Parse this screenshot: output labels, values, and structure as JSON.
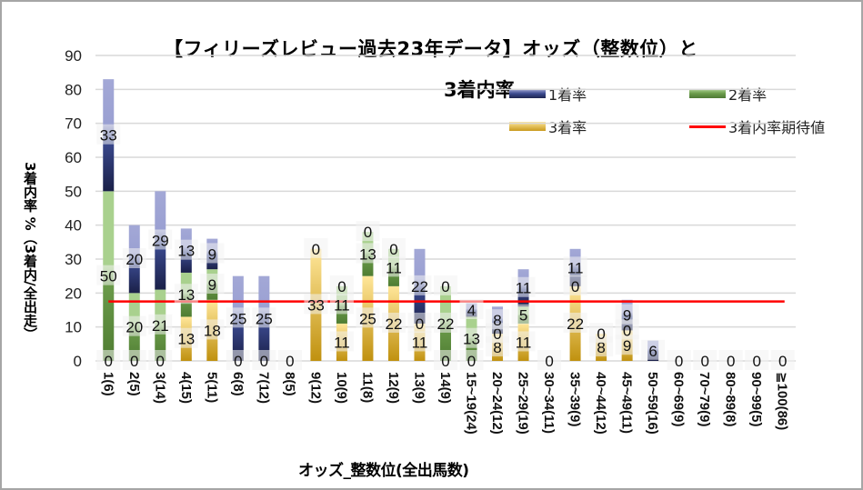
{
  "chart_data": {
    "type": "bar",
    "stacked": true,
    "title": "【フィリーズレビュー過去23年データ】オッズ（整数位）と",
    "title_line2": "3着内率",
    "xlabel": "オッズ_整数位(全出馬数)",
    "ylabel": "3着内率 %（3着内/全出走）",
    "ylim": [
      0,
      90
    ],
    "yticks": [
      0,
      10,
      20,
      30,
      40,
      50,
      60,
      70,
      80,
      90
    ],
    "grid": true,
    "legend_position": "top-right",
    "categories": [
      "1(6)",
      "2(5)",
      "3(14)",
      "4(15)",
      "5(11)",
      "6(8)",
      "7(12)",
      "8(5)",
      "9(12)",
      "10(9)",
      "11(8)",
      "12(9)",
      "13(9)",
      "14(9)",
      "15~19(24)",
      "20~24(12)",
      "25~29(19)",
      "30~34(11)",
      "35~39(9)",
      "40~44(12)",
      "45~49(11)",
      "50~59(16)",
      "60~69(9)",
      "70~79(9)",
      "80~89(8)",
      "90~99(5)",
      "≧100(86)"
    ],
    "series": [
      {
        "name": "3着率",
        "color": "#c99a1e",
        "values": [
          0,
          0,
          0,
          13,
          18,
          0,
          0,
          0,
          33,
          11,
          25,
          22,
          11,
          0,
          0,
          8,
          11,
          0,
          22,
          8,
          9,
          0,
          0,
          0,
          0,
          0,
          0
        ],
        "labels": [
          "0",
          "0",
          "0",
          "13",
          "18",
          "0",
          "0",
          "0",
          "33",
          "11",
          "25",
          "22",
          "11",
          "0",
          "0",
          "8",
          "11",
          "0",
          "22",
          "8",
          "9",
          "",
          "0",
          "0",
          "0",
          "0",
          "0"
        ]
      },
      {
        "name": "2着率",
        "color": "#6a9a4a",
        "values": [
          50,
          20,
          21,
          13,
          9,
          0,
          0,
          0,
          0,
          11,
          13,
          11,
          0,
          22,
          13,
          0,
          5,
          0,
          0,
          0,
          0,
          0,
          0,
          0,
          0,
          0,
          0
        ],
        "labels": [
          "50",
          "20",
          "21",
          "13",
          "9",
          "",
          "",
          "",
          "",
          "11",
          "13",
          "11",
          "0",
          "22",
          "13",
          "0",
          "5",
          "",
          "0",
          "0",
          "0",
          "",
          "",
          "",
          "",
          "",
          ""
        ]
      },
      {
        "name": "1着率",
        "color": "#3b4a8f",
        "values": [
          33,
          20,
          29,
          13,
          9,
          25,
          25,
          0,
          0,
          0,
          0,
          0,
          22,
          0,
          4,
          8,
          11,
          0,
          11,
          0,
          9,
          6,
          0,
          0,
          0,
          0,
          0
        ],
        "labels": [
          "33",
          "20",
          "29",
          "13",
          "9",
          "25",
          "25",
          "",
          "0",
          "0",
          "0",
          "0",
          "22",
          "0",
          "4",
          "8",
          "11",
          "",
          "11",
          "",
          "9",
          "6",
          "",
          "",
          "",
          "",
          ""
        ]
      }
    ],
    "reference_line": {
      "name": "3着内率期待値",
      "color": "#ff0000",
      "value": 17.5
    }
  },
  "legend": [
    {
      "label": "1着率"
    },
    {
      "label": "2着率"
    },
    {
      "label": "3着率"
    },
    {
      "label": "3着内率期待値"
    }
  ]
}
